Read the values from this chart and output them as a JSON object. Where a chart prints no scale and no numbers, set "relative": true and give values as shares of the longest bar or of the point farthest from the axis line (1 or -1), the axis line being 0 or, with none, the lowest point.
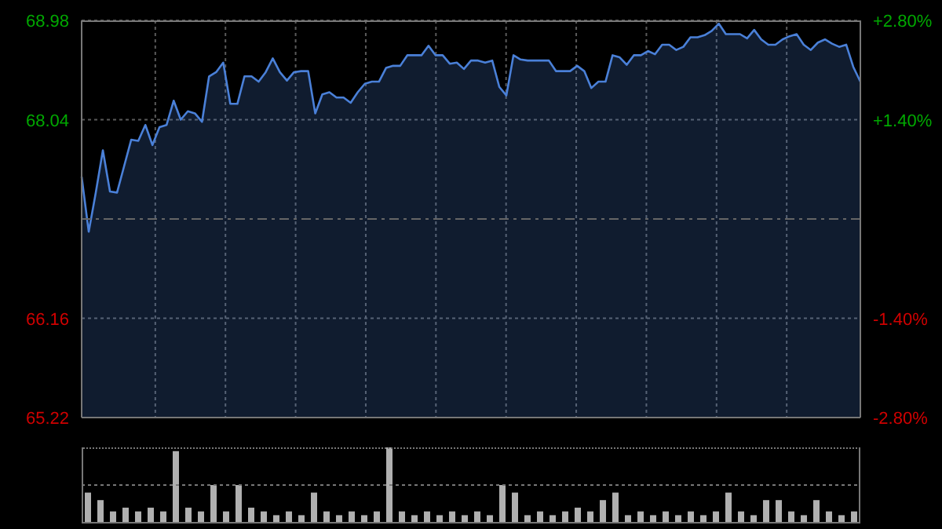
{
  "chart_data": [
    {
      "type": "area",
      "categories": [
        null,
        null,
        null,
        null,
        null,
        null,
        null,
        null,
        null,
        null,
        null,
        null,
        null,
        null,
        null,
        null,
        null,
        null,
        null,
        null,
        null,
        null,
        null,
        null,
        null,
        null,
        null,
        null,
        null,
        null,
        null,
        null,
        null,
        null,
        null,
        null,
        null,
        null,
        null,
        null,
        null,
        null,
        null,
        null,
        null,
        null,
        null,
        null,
        null,
        null,
        null,
        null,
        null,
        null,
        null,
        null,
        null,
        null,
        null,
        null,
        null,
        null,
        null,
        null,
        null,
        null,
        null,
        null,
        null,
        null,
        null,
        null,
        null,
        null,
        null,
        null,
        null,
        null,
        null,
        null,
        null,
        null,
        null,
        null,
        null,
        null,
        null,
        null,
        null,
        null,
        null,
        null,
        null,
        null,
        null,
        null,
        null,
        null,
        null,
        null,
        null,
        null,
        null,
        null,
        null,
        null,
        null,
        null,
        null,
        null,
        null
      ],
      "ylim": [
        65.22,
        68.98
      ],
      "yticks": [
        65.22,
        66.16,
        68.04,
        68.98
      ],
      "y2lim": [
        -2.8,
        2.8
      ],
      "y2ticks": [
        {
          "value": -2.8,
          "label": "-2.80%"
        },
        {
          "value": -1.4,
          "label": "-1.40%"
        },
        {
          "value": 1.4,
          "label": "+1.40%"
        },
        {
          "value": 2.8,
          "label": "+2.80%"
        }
      ],
      "grid": true,
      "marker": "none",
      "line_style": "solid",
      "ref_lines": [
        {
          "axis": "y2",
          "value": 0,
          "line_style": "dashed",
          "color": "#666666"
        }
      ],
      "series": [
        {
          "color": "#4a80d8",
          "values": [
            67.5,
            66.98,
            67.35,
            67.75,
            67.36,
            67.35,
            67.6,
            67.85,
            67.84,
            67.99,
            67.8,
            67.97,
            67.99,
            68.22,
            68.04,
            68.12,
            68.1,
            68.02,
            68.45,
            68.49,
            68.58,
            68.19,
            68.19,
            68.45,
            68.45,
            68.4,
            68.49,
            68.62,
            68.49,
            68.41,
            68.49,
            68.5,
            68.5,
            68.1,
            68.28,
            68.3,
            68.25,
            68.25,
            68.2,
            68.3,
            68.38,
            68.4,
            68.4,
            68.53,
            68.55,
            68.55,
            68.65,
            68.65,
            68.65,
            68.74,
            68.65,
            68.65,
            68.57,
            68.58,
            68.52,
            68.6,
            68.6,
            68.58,
            68.6,
            68.35,
            68.27,
            68.65,
            68.61,
            68.6,
            68.6,
            68.6,
            68.6,
            68.5,
            68.5,
            68.5,
            68.55,
            68.5,
            68.34,
            68.4,
            68.4,
            68.65,
            68.63,
            68.56,
            68.65,
            68.65,
            68.69,
            68.66,
            68.75,
            68.75,
            68.7,
            68.73,
            68.82,
            68.82,
            68.84,
            68.88,
            68.95,
            68.85,
            68.85,
            68.85,
            68.81,
            68.89,
            68.8,
            68.75,
            68.75,
            68.8,
            68.83,
            68.85,
            68.75,
            68.7,
            68.77,
            68.8,
            68.76,
            68.73,
            68.75,
            68.54,
            68.4
          ]
        }
      ]
    },
    {
      "type": "bar",
      "relative": true,
      "color": "#b0b0b0",
      "ref_lines": [
        {
          "axis": "y",
          "value": 0.5,
          "line_style": "dotted",
          "color": "#777777"
        }
      ],
      "categories": [
        null,
        null,
        null,
        null,
        null,
        null,
        null,
        null,
        null,
        null,
        null,
        null,
        null,
        null,
        null,
        null,
        null,
        null,
        null,
        null,
        null,
        null,
        null,
        null,
        null,
        null,
        null,
        null,
        null,
        null,
        null,
        null,
        null,
        null,
        null,
        null,
        null,
        null,
        null,
        null,
        null,
        null,
        null,
        null,
        null,
        null,
        null,
        null,
        null,
        null,
        null,
        null,
        null,
        null,
        null,
        null,
        null,
        null,
        null,
        null,
        null,
        null
      ],
      "values": [
        0.4,
        0.3,
        0.15,
        0.2,
        0.15,
        0.2,
        0.15,
        0.95,
        0.2,
        0.15,
        0.5,
        0.15,
        0.5,
        0.2,
        0.15,
        0.1,
        0.15,
        0.1,
        0.4,
        0.15,
        0.1,
        0.15,
        0.1,
        0.15,
        1,
        0.15,
        0.1,
        0.15,
        0.1,
        0.15,
        0.1,
        0.15,
        0.1,
        0.5,
        0.4,
        0.1,
        0.15,
        0.1,
        0.15,
        0.2,
        0.15,
        0.3,
        0.4,
        0.1,
        0.15,
        0.1,
        0.15,
        0.1,
        0.15,
        0.1,
        0.15,
        0.4,
        0.15,
        0.1,
        0.3,
        0.3,
        0.15,
        0.1,
        0.3,
        0.15,
        0.1,
        0.15
      ]
    }
  ]
}
